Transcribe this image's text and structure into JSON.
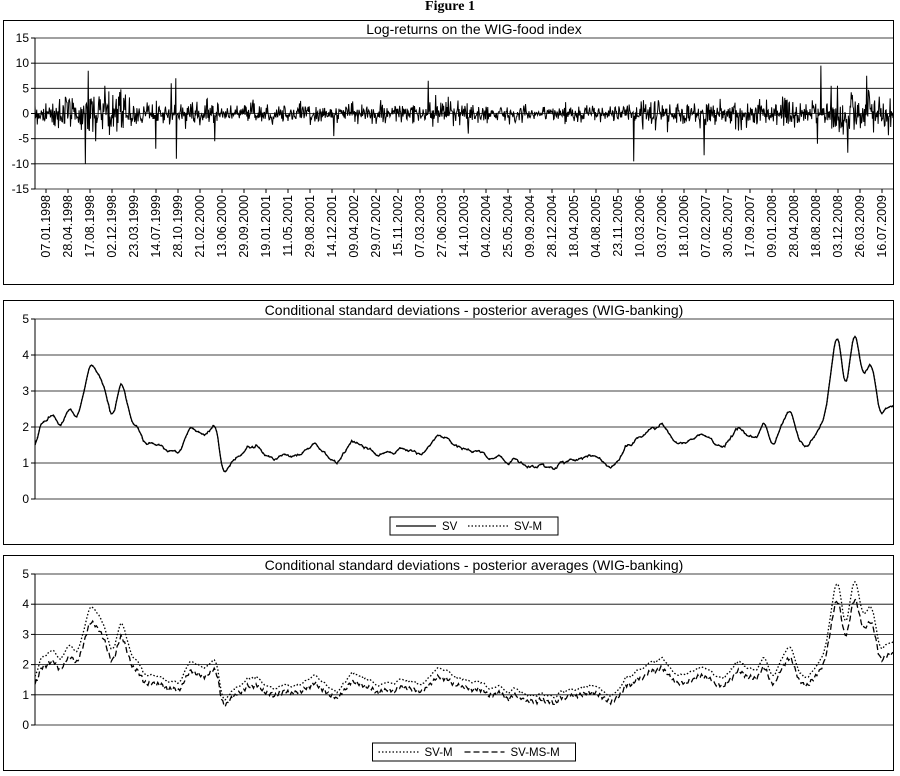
{
  "figure_caption": "Figure 1",
  "chart_data": [
    {
      "type": "line",
      "title": "Log-returns on the WIG-food index",
      "ylim": [
        -15,
        15
      ],
      "yticks": [
        -15,
        -10,
        -5,
        0,
        5,
        10,
        15
      ],
      "grid": true,
      "x_tick_labels": [
        "07.01.1998",
        "28.04.1998",
        "17.08.1998",
        "02.12.1998",
        "23.03.1999",
        "14.07.1999",
        "28.10.1999",
        "21.02.2000",
        "13.06.2000",
        "29.09.2000",
        "19.01.2001",
        "11.05.2001",
        "29.08.2001",
        "14.12.2001",
        "09.04.2002",
        "29.07.2002",
        "15.11.2002",
        "07.03.2003",
        "27.06.2003",
        "14.10.2003",
        "04.02.2004",
        "25.05.2004",
        "09.09.2004",
        "28.12.2004",
        "18.04.2005",
        "04.08.2005",
        "23.11.2005",
        "10.03.2006",
        "03.07.2006",
        "18.10.2006",
        "07.02.2007",
        "30.05.2007",
        "17.09.2007",
        "09.01.2008",
        "28.04.2008",
        "18.08.2008",
        "03.12.2008",
        "26.03.2009",
        "16.07.2009"
      ],
      "series": [
        {
          "values_generation": "daily noise with volatility following the shared envelope",
          "spikes": [
            {
              "pos": 0.062,
              "value": 8.5
            },
            {
              "pos": 0.059,
              "value": -10.0
            },
            {
              "pos": 0.141,
              "value": -7.0
            },
            {
              "pos": 0.159,
              "value": 6.0
            },
            {
              "pos": 0.164,
              "value": 7.0
            },
            {
              "pos": 0.165,
              "value": -9.0
            },
            {
              "pos": 0.348,
              "value": -4.5
            },
            {
              "pos": 0.458,
              "value": 6.5
            },
            {
              "pos": 0.505,
              "value": -4.0
            },
            {
              "pos": 0.698,
              "value": -9.5
            },
            {
              "pos": 0.78,
              "value": -8.3
            },
            {
              "pos": 0.916,
              "value": 9.5
            },
            {
              "pos": 0.912,
              "value": -6.0
            },
            {
              "pos": 0.947,
              "value": -7.8
            },
            {
              "pos": 0.969,
              "value": 7.5
            }
          ]
        }
      ]
    },
    {
      "type": "line",
      "title": "Conditional standard deviations - posterior averages (WIG-banking)",
      "ylim": [
        0,
        5
      ],
      "yticks": [
        0,
        1,
        2,
        3,
        4,
        5
      ],
      "grid": true,
      "legend": "bottom-center",
      "series": [
        {
          "name": "SV",
          "style": "solid"
        },
        {
          "name": "SV-M",
          "style": "dotted"
        }
      ]
    },
    {
      "type": "line",
      "title": "Conditional standard deviations - posterior averages (WIG-banking)",
      "ylim": [
        0,
        5
      ],
      "yticks": [
        0,
        1,
        2,
        3,
        4,
        5
      ],
      "grid": true,
      "legend": "bottom-center",
      "series": [
        {
          "name": "SV-M",
          "style": "dotted"
        },
        {
          "name": "SV-MS-M",
          "style": "dashed"
        }
      ]
    }
  ],
  "volatility_envelope": {
    "x_fraction": [
      0,
      0.005,
      0.02,
      0.03,
      0.04,
      0.05,
      0.06,
      0.065,
      0.08,
      0.09,
      0.1,
      0.11,
      0.13,
      0.15,
      0.17,
      0.18,
      0.2,
      0.21,
      0.22,
      0.25,
      0.28,
      0.3,
      0.33,
      0.35,
      0.37,
      0.4,
      0.43,
      0.45,
      0.47,
      0.5,
      0.53,
      0.55,
      0.58,
      0.6,
      0.62,
      0.65,
      0.67,
      0.7,
      0.73,
      0.75,
      0.78,
      0.8,
      0.82,
      0.84,
      0.85,
      0.86,
      0.88,
      0.89,
      0.9,
      0.92,
      0.935,
      0.945,
      0.955,
      0.965,
      0.975,
      0.985,
      1.0
    ],
    "value": [
      1.3,
      2.0,
      2.3,
      2.0,
      2.6,
      2.2,
      3.3,
      3.9,
      3.2,
      2.2,
      3.3,
      2.4,
      1.6,
      1.4,
      1.3,
      2.0,
      1.8,
      2.1,
      0.7,
      1.5,
      1.1,
      1.2,
      1.5,
      1.0,
      1.6,
      1.2,
      1.4,
      1.2,
      1.8,
      1.4,
      1.2,
      1.1,
      0.9,
      0.9,
      1.0,
      1.2,
      0.9,
      1.7,
      2.1,
      1.5,
      1.8,
      1.4,
      2.0,
      1.6,
      2.1,
      1.5,
      2.6,
      1.7,
      1.4,
      2.2,
      4.8,
      2.9,
      4.8,
      3.4,
      3.8,
      2.3,
      2.6
    ]
  }
}
